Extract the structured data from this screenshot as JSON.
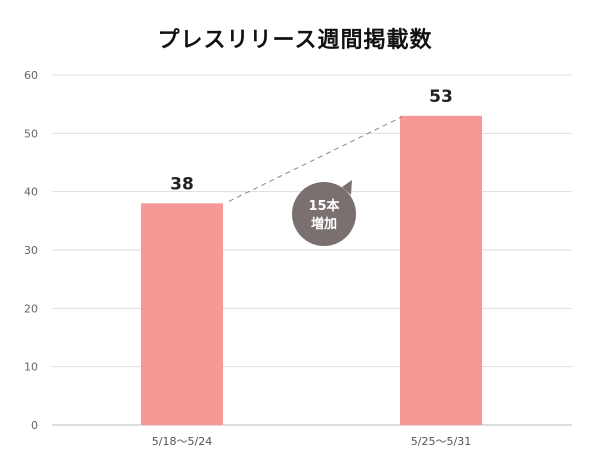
{
  "chart_data": {
    "type": "bar",
    "title": "プレスリリース週間掲載数",
    "categories": [
      "5/18〜5/24",
      "5/25〜5/31"
    ],
    "values": [
      38,
      53
    ],
    "ylim": [
      0,
      60
    ],
    "yticks": [
      0,
      10,
      20,
      30,
      40,
      50,
      60
    ],
    "grid": true,
    "bar_color": "#f89896",
    "annotation": {
      "lines": [
        "15本",
        "増加"
      ],
      "bubble_color": "#7a7070"
    }
  }
}
